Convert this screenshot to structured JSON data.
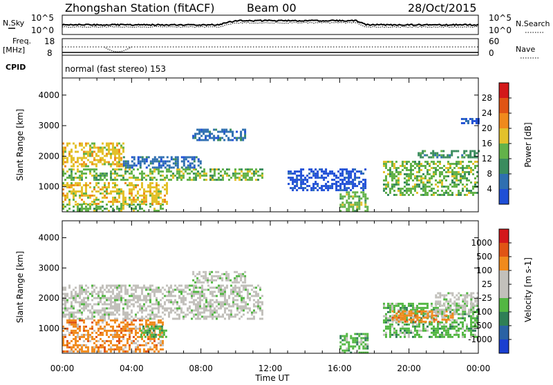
{
  "header": {
    "station": "Zhongshan Station (fitACF)",
    "beam": "Beam 00",
    "date": "28/Oct/2015"
  },
  "noise_panel": {
    "left_label": "N.Sky",
    "right_label": "N.Search",
    "left_ticks": [
      "10^5",
      "10^0"
    ],
    "right_ticks": [
      "10^5",
      "10^0"
    ]
  },
  "freq_panel": {
    "left_label_1": "Freq.",
    "left_label_2": "[MHz]",
    "right_label": "Nave",
    "left_ticks": [
      "18",
      "8"
    ],
    "right_ticks": [
      "60",
      "0"
    ],
    "freq_low_mhz": 8,
    "freq_high_mhz": 18,
    "nave_low": 0,
    "nave_high": 60
  },
  "cpid": {
    "label": "CPID",
    "value": "normal (fast stereo) 153"
  },
  "chart_data": [
    {
      "type": "heatmap",
      "ylabel": "Slant Range [km]",
      "yticks": [
        "1000",
        "2000",
        "3000",
        "4000"
      ],
      "ylim": [
        180,
        4560
      ],
      "xticks": [
        "00:00",
        "04:00",
        "08:00",
        "12:00",
        "16:00",
        "20:00",
        "00:00"
      ],
      "xlim_hours": [
        0,
        24
      ],
      "colorbar": {
        "label": "Power [dB]",
        "ticks": [
          "4",
          "8",
          "12",
          "16",
          "20",
          "24",
          "28"
        ],
        "range": [
          0,
          32
        ],
        "colors": [
          "#1f4fd6",
          "#2f6fb0",
          "#3a8c5e",
          "#63b24a",
          "#e3c12b",
          "#f08a1c",
          "#e05414",
          "#d3181a"
        ]
      },
      "regions": [
        {
          "x0": 0.0,
          "x1": 5.8,
          "y0": 200,
          "y1": 450,
          "level": 3
        },
        {
          "x0": 0.0,
          "x1": 6.0,
          "y0": 450,
          "y1": 1150,
          "level": 4
        },
        {
          "x0": 0.0,
          "x1": 11.5,
          "y0": 1200,
          "y1": 1600,
          "level": 3
        },
        {
          "x0": 0.0,
          "x1": 3.5,
          "y0": 1650,
          "y1": 2450,
          "level": 4
        },
        {
          "x0": 3.5,
          "x1": 8.0,
          "y0": 1650,
          "y1": 2000,
          "level": 1
        },
        {
          "x0": 7.5,
          "x1": 10.5,
          "y0": 2550,
          "y1": 2900,
          "level": 1
        },
        {
          "x0": 13.0,
          "x1": 17.5,
          "y0": 900,
          "y1": 1600,
          "level": 0
        },
        {
          "x0": 16.0,
          "x1": 17.6,
          "y0": 200,
          "y1": 850,
          "level": 3
        },
        {
          "x0": 18.5,
          "x1": 24.0,
          "y0": 700,
          "y1": 1850,
          "level": 3
        },
        {
          "x0": 20.5,
          "x1": 24.0,
          "y0": 1950,
          "y1": 2200,
          "level": 2
        },
        {
          "x0": 23.0,
          "x1": 24.0,
          "y0": 3050,
          "y1": 3250,
          "level": 0
        }
      ]
    },
    {
      "type": "heatmap",
      "ylabel": "Slant Range [km]",
      "yticks": [
        "1000",
        "2000",
        "3000",
        "4000"
      ],
      "ylim": [
        180,
        4560
      ],
      "xticks": [
        "00:00",
        "04:00",
        "08:00",
        "12:00",
        "16:00",
        "20:00",
        "00:00"
      ],
      "xlim_hours": [
        0,
        24
      ],
      "xlabel": "Time UT",
      "colorbar": {
        "label": "Velocity [m s-1]",
        "ticks": [
          "1000",
          "500",
          "100",
          "25",
          "-25",
          "-100",
          "-500",
          "-1000"
        ],
        "colors": [
          "#1a3fd0",
          "#2a62a4",
          "#2f7f56",
          "#53b743",
          "#c2c0bb",
          "#c2c0bb",
          "#f08a1c",
          "#e05414",
          "#d3181a"
        ]
      },
      "regions": [
        {
          "x0": 0.0,
          "x1": 11.5,
          "y0": 1350,
          "y1": 2450,
          "level": 4
        },
        {
          "x0": 7.5,
          "x1": 10.5,
          "y0": 2500,
          "y1": 2900,
          "level": 4
        },
        {
          "x0": 0.0,
          "x1": 5.8,
          "y0": 250,
          "y1": 1300,
          "level": 6
        },
        {
          "x0": 4.5,
          "x1": 6.0,
          "y0": 700,
          "y1": 1100,
          "level": 3
        },
        {
          "x0": 16.0,
          "x1": 17.6,
          "y0": 200,
          "y1": 850,
          "level": 3
        },
        {
          "x0": 18.5,
          "x1": 24.0,
          "y0": 700,
          "y1": 1850,
          "level": 3
        },
        {
          "x0": 19.0,
          "x1": 22.5,
          "y0": 1250,
          "y1": 1600,
          "level": 6
        },
        {
          "x0": 21.5,
          "x1": 24.0,
          "y0": 1500,
          "y1": 2200,
          "level": 4
        }
      ]
    }
  ]
}
